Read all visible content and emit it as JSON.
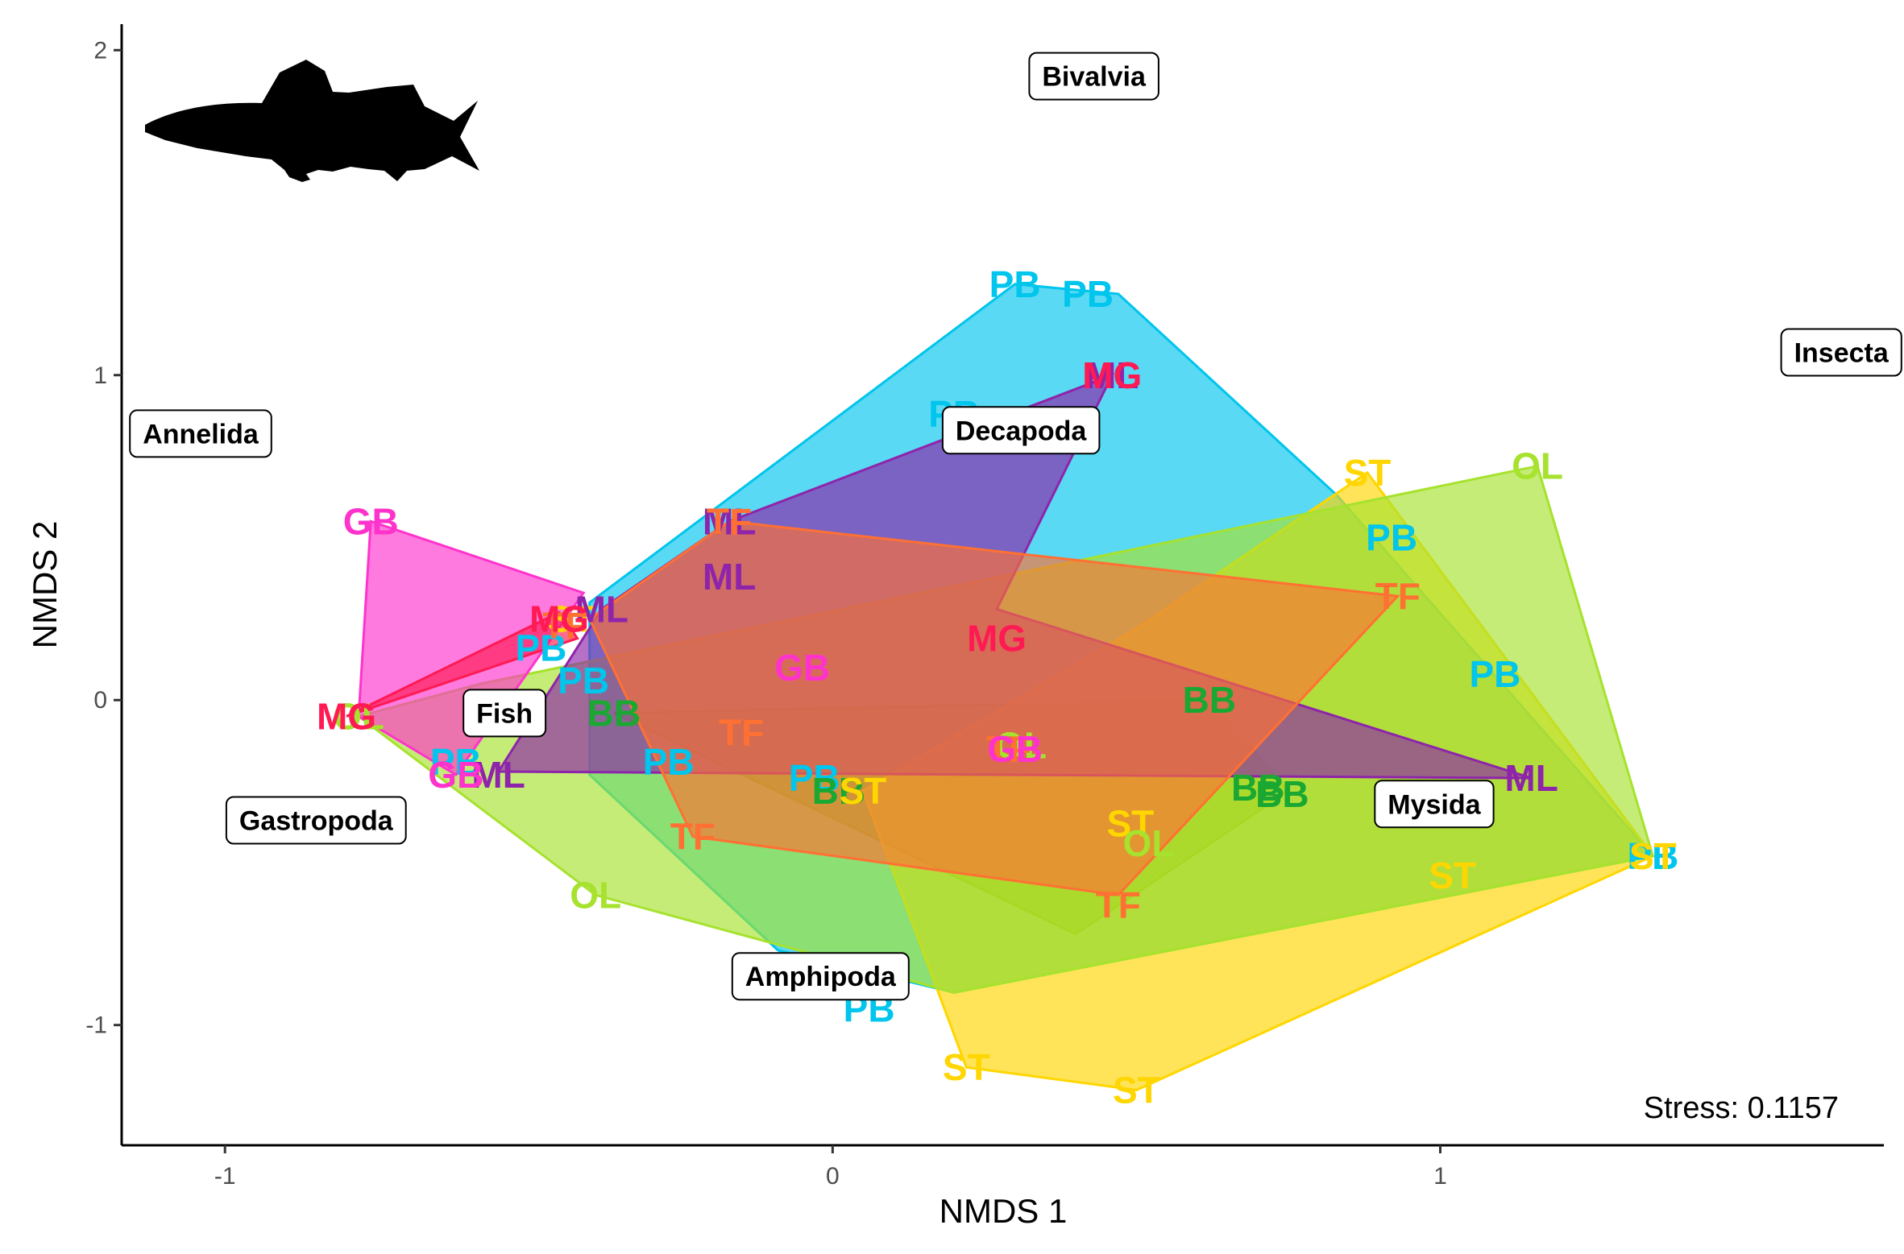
{
  "chart_data": {
    "type": "scatter",
    "xlabel": "NMDS 1",
    "ylabel": "NMDS 2",
    "xlim": [
      -1.17,
      1.73
    ],
    "ylim": [
      -1.37,
      2.08
    ],
    "x_ticks": [
      -1,
      0,
      1
    ],
    "y_ticks": [
      -1,
      0,
      1,
      2
    ],
    "grid": false,
    "stress_text": "Stress: 0.1157",
    "groups": [
      {
        "code": "PB",
        "color": "#00c5ec",
        "hull": [
          [
            0.3,
            1.28
          ],
          [
            0.47,
            1.25
          ],
          [
            0.83,
            0.63
          ],
          [
            1.35,
            -0.48
          ],
          [
            0.2,
            -0.9
          ],
          [
            -0.09,
            -0.77
          ],
          [
            -0.4,
            -0.23
          ],
          [
            -0.4,
            0.3
          ]
        ],
        "points": [
          [
            0.3,
            1.28
          ],
          [
            0.42,
            1.25
          ],
          [
            0.2,
            0.88
          ],
          [
            0.92,
            0.5
          ],
          [
            1.09,
            0.08
          ],
          [
            -0.48,
            0.16
          ],
          [
            -0.41,
            0.06
          ],
          [
            -0.62,
            -0.19
          ],
          [
            -0.27,
            -0.19
          ],
          [
            -0.03,
            -0.24
          ],
          [
            0.06,
            -0.95
          ],
          [
            1.35,
            -0.48
          ]
        ]
      },
      {
        "code": "BB",
        "color": "#1aa832",
        "hull": [
          [
            0.62,
            0.0
          ],
          [
            0.75,
            -0.28
          ],
          [
            0.4,
            -0.72
          ],
          [
            -0.36,
            -0.04
          ]
        ],
        "points": [
          [
            0.62,
            0.0
          ],
          [
            0.7,
            -0.27
          ],
          [
            0.74,
            -0.29
          ],
          [
            -0.36,
            -0.04
          ],
          [
            0.01,
            -0.28
          ]
        ]
      },
      {
        "code": "ST",
        "color": "#ffd600",
        "hull": [
          [
            0.88,
            0.7
          ],
          [
            1.35,
            -0.48
          ],
          [
            0.5,
            -1.2
          ],
          [
            0.22,
            -1.13
          ],
          [
            0.05,
            -0.28
          ],
          [
            0.5,
            0.22
          ]
        ],
        "points": [
          [
            0.88,
            0.7
          ],
          [
            1.35,
            -0.48
          ],
          [
            1.02,
            -0.54
          ],
          [
            0.5,
            -1.2
          ],
          [
            0.22,
            -1.13
          ],
          [
            0.05,
            -0.28
          ],
          [
            0.49,
            -0.38
          ],
          [
            -0.43,
            0.25
          ]
        ]
      },
      {
        "code": "OL",
        "color": "#a6e22e",
        "hull": [
          [
            1.16,
            0.72
          ],
          [
            1.35,
            -0.48
          ],
          [
            0.2,
            -0.9
          ],
          [
            -0.39,
            -0.6
          ],
          [
            -0.78,
            -0.05
          ],
          [
            -0.58,
            0.05
          ]
        ],
        "points": [
          [
            1.16,
            0.72
          ],
          [
            0.52,
            -0.44
          ],
          [
            -0.78,
            -0.05
          ],
          [
            -0.39,
            -0.6
          ],
          [
            0.31,
            -0.14
          ]
        ]
      },
      {
        "code": "ML",
        "color": "#8e24aa",
        "hull": [
          [
            0.46,
            1.0
          ],
          [
            0.27,
            0.28
          ],
          [
            1.15,
            -0.24
          ],
          [
            -0.55,
            -0.22
          ],
          [
            -0.38,
            0.28
          ],
          [
            -0.17,
            0.55
          ]
        ],
        "points": [
          [
            0.46,
            1.0
          ],
          [
            -0.17,
            0.55
          ],
          [
            -0.17,
            0.38
          ],
          [
            -0.38,
            0.28
          ],
          [
            1.15,
            -0.24
          ],
          [
            -0.55,
            -0.23
          ]
        ]
      },
      {
        "code": "TF",
        "color": "#ff7033",
        "hull": [
          [
            -0.17,
            0.55
          ],
          [
            0.93,
            0.32
          ],
          [
            0.47,
            -0.6
          ],
          [
            -0.23,
            -0.42
          ],
          [
            -0.4,
            0.25
          ]
        ],
        "points": [
          [
            -0.17,
            0.55
          ],
          [
            0.93,
            0.32
          ],
          [
            0.47,
            -0.63
          ],
          [
            -0.23,
            -0.42
          ],
          [
            -0.15,
            -0.1
          ],
          [
            0.29,
            -0.15
          ],
          [
            -0.44,
            0.23
          ]
        ]
      },
      {
        "code": "GB",
        "color": "#ff33cc",
        "hull": [
          [
            -0.76,
            0.55
          ],
          [
            -0.41,
            0.33
          ],
          [
            -0.62,
            -0.23
          ],
          [
            -0.78,
            -0.05
          ]
        ],
        "points": [
          [
            -0.76,
            0.55
          ],
          [
            -0.05,
            0.1
          ],
          [
            -0.62,
            -0.23
          ],
          [
            0.3,
            -0.15
          ]
        ]
      },
      {
        "code": "MG",
        "color": "#ff1a53",
        "hull": [
          [
            -0.45,
            0.27
          ],
          [
            -0.42,
            0.19
          ],
          [
            -0.8,
            -0.05
          ]
        ],
        "points": [
          [
            0.46,
            1.0
          ],
          [
            0.27,
            0.19
          ],
          [
            -0.45,
            0.25
          ],
          [
            -0.8,
            -0.05
          ]
        ]
      }
    ],
    "taxa": [
      {
        "name": "Bivalvia",
        "x": 0.43,
        "y": 1.92
      },
      {
        "name": "Insecta",
        "x": 1.66,
        "y": 1.07
      },
      {
        "name": "Annelida",
        "x": -1.04,
        "y": 0.82
      },
      {
        "name": "Decapoda",
        "x": 0.31,
        "y": 0.83
      },
      {
        "name": "Fish",
        "x": -0.54,
        "y": -0.04
      },
      {
        "name": "Gastropoda",
        "x": -0.85,
        "y": -0.37
      },
      {
        "name": "Mysida",
        "x": 0.99,
        "y": -0.32
      },
      {
        "name": "Amphipoda",
        "x": -0.02,
        "y": -0.85
      }
    ]
  }
}
